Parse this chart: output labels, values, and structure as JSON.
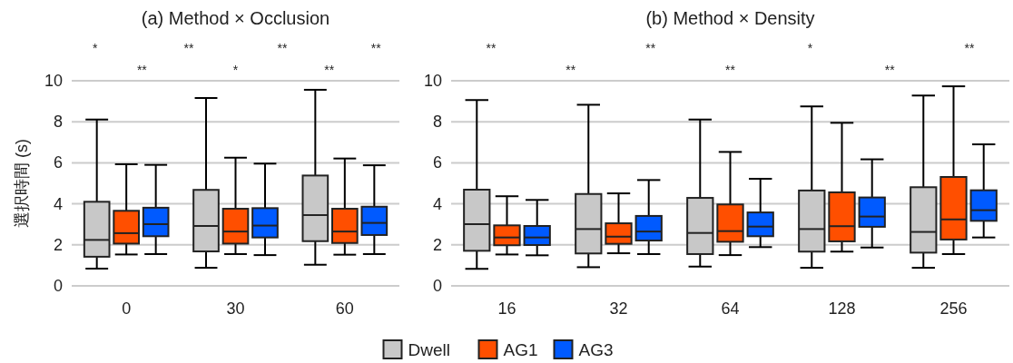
{
  "chart_data": [
    {
      "type": "box",
      "title": "(a) Method × Occlusion",
      "ylabel": "選択時間 (s)",
      "categories": [
        "0",
        "30",
        "60"
      ],
      "ylim": [
        0,
        10
      ],
      "yticks": [
        0,
        2,
        4,
        6,
        8,
        10
      ],
      "grid": "y",
      "legend": "bottom",
      "series": [
        {
          "name": "Dwell",
          "color": "#c8c8c8",
          "boxes": [
            {
              "low": 0.84,
              "q1": 1.42,
              "median": 2.24,
              "q3": 4.1,
              "high": 8.11
            },
            {
              "low": 0.88,
              "q1": 1.68,
              "median": 2.92,
              "q3": 4.68,
              "high": 9.16
            },
            {
              "low": 1.03,
              "q1": 2.18,
              "median": 3.45,
              "q3": 5.38,
              "high": 9.56
            }
          ]
        },
        {
          "name": "AG1",
          "color": "#ff4f00",
          "boxes": [
            {
              "low": 1.53,
              "q1": 2.06,
              "median": 2.57,
              "q3": 3.66,
              "high": 5.93
            },
            {
              "low": 1.55,
              "q1": 2.06,
              "median": 2.65,
              "q3": 3.76,
              "high": 6.25
            },
            {
              "low": 1.52,
              "q1": 2.09,
              "median": 2.65,
              "q3": 3.76,
              "high": 6.21
            }
          ]
        },
        {
          "name": "AG3",
          "color": "#005aff",
          "boxes": [
            {
              "low": 1.55,
              "q1": 2.42,
              "median": 3.01,
              "q3": 3.81,
              "high": 5.9
            },
            {
              "low": 1.5,
              "q1": 2.36,
              "median": 2.94,
              "q3": 3.79,
              "high": 5.96
            },
            {
              "low": 1.55,
              "q1": 2.48,
              "median": 3.07,
              "q3": 3.86,
              "high": 5.88
            }
          ]
        }
      ],
      "annotations": [
        "*",
        "**",
        "**",
        "*",
        "**",
        "**",
        "**"
      ]
    },
    {
      "type": "box",
      "title": "(b) Method × Density",
      "categories": [
        "16",
        "32",
        "64",
        "128",
        "256"
      ],
      "ylim": [
        0,
        10
      ],
      "yticks": [
        0,
        2,
        4,
        6,
        8,
        10
      ],
      "grid": "y",
      "series": [
        {
          "color": "#c8c8c8",
          "boxes": [
            {
              "low": 0.83,
              "q1": 1.71,
              "median": 3.01,
              "q3": 4.69,
              "high": 9.06
            },
            {
              "low": 0.91,
              "q1": 1.58,
              "median": 2.77,
              "q3": 4.48,
              "high": 8.83
            },
            {
              "low": 0.94,
              "q1": 1.55,
              "median": 2.58,
              "q3": 4.29,
              "high": 8.11
            },
            {
              "low": 0.88,
              "q1": 1.67,
              "median": 2.77,
              "q3": 4.65,
              "high": 8.75
            },
            {
              "low": 0.88,
              "q1": 1.62,
              "median": 2.63,
              "q3": 4.81,
              "high": 9.28
            }
          ]
        },
        {
          "color": "#ff4f00",
          "boxes": [
            {
              "low": 1.53,
              "q1": 1.98,
              "median": 2.36,
              "q3": 2.95,
              "high": 4.37
            },
            {
              "low": 1.59,
              "q1": 2.05,
              "median": 2.4,
              "q3": 3.05,
              "high": 4.51
            },
            {
              "low": 1.5,
              "q1": 2.15,
              "median": 2.67,
              "q3": 3.97,
              "high": 6.53
            },
            {
              "low": 1.67,
              "q1": 2.17,
              "median": 2.91,
              "q3": 4.56,
              "high": 7.95
            },
            {
              "low": 1.55,
              "q1": 2.26,
              "median": 3.24,
              "q3": 5.31,
              "high": 9.73
            }
          ]
        },
        {
          "color": "#005aff",
          "boxes": [
            {
              "low": 1.49,
              "q1": 1.99,
              "median": 2.36,
              "q3": 2.92,
              "high": 4.19
            },
            {
              "low": 1.55,
              "q1": 2.21,
              "median": 2.65,
              "q3": 3.41,
              "high": 5.16
            },
            {
              "low": 1.89,
              "q1": 2.42,
              "median": 2.89,
              "q3": 3.58,
              "high": 5.22
            },
            {
              "low": 1.87,
              "q1": 2.88,
              "median": 3.38,
              "q3": 4.31,
              "high": 6.17
            },
            {
              "low": 2.36,
              "q1": 3.17,
              "median": 3.69,
              "q3": 4.66,
              "high": 6.9
            }
          ]
        }
      ],
      "annotations": [
        "**",
        "**",
        "**",
        "**",
        "*",
        "**",
        "**"
      ]
    }
  ]
}
